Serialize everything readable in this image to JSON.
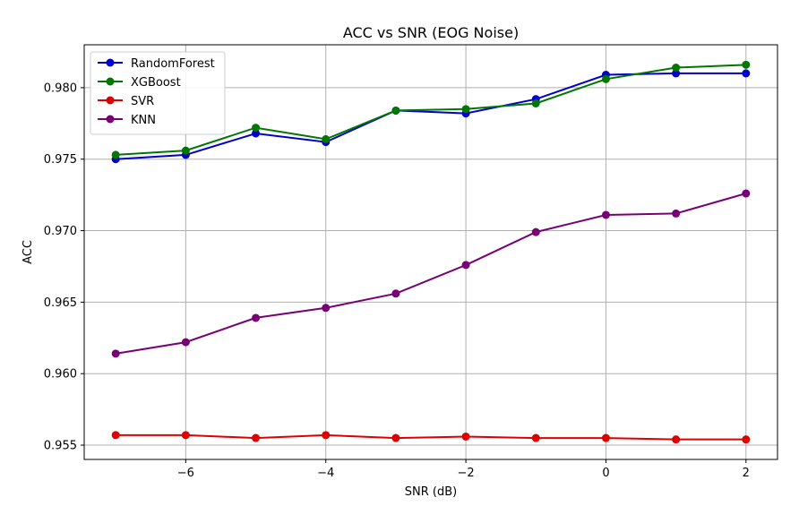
{
  "chart_data": {
    "type": "line",
    "title": "ACC vs SNR (EOG Noise)",
    "xlabel": "SNR (dB)",
    "ylabel": "ACC",
    "x": [
      -7,
      -6,
      -5,
      -4,
      -3,
      -2,
      -1,
      0,
      1,
      2
    ],
    "xlim": [
      -7.45,
      2.45
    ],
    "ylim": [
      0.954,
      0.983
    ],
    "xticks": [
      -6,
      -4,
      -2,
      0,
      2
    ],
    "xtick_labels": [
      "−6",
      "−4",
      "−2",
      "0",
      "2"
    ],
    "yticks": [
      0.955,
      0.96,
      0.965,
      0.97,
      0.975,
      0.98
    ],
    "ytick_labels": [
      "0.955",
      "0.960",
      "0.965",
      "0.970",
      "0.975",
      "0.980"
    ],
    "grid": true,
    "legend_position": "upper-left",
    "series": [
      {
        "name": "RandomForest",
        "color": "#0000cc",
        "values": [
          0.975,
          0.9753,
          0.9768,
          0.9762,
          0.9784,
          0.9782,
          0.9792,
          0.9809,
          0.981,
          0.981
        ]
      },
      {
        "name": "XGBoost",
        "color": "#007700",
        "values": [
          0.9753,
          0.9756,
          0.9772,
          0.9764,
          0.9784,
          0.9785,
          0.9789,
          0.9806,
          0.9814,
          0.9816
        ]
      },
      {
        "name": "SVR",
        "color": "#dd0000",
        "values": [
          0.9557,
          0.9557,
          0.9555,
          0.9557,
          0.9555,
          0.9556,
          0.9555,
          0.9555,
          0.9554,
          0.9554
        ]
      },
      {
        "name": "KNN",
        "color": "#770077",
        "values": [
          0.9614,
          0.9622,
          0.9639,
          0.9646,
          0.9656,
          0.9676,
          0.9699,
          0.9711,
          0.9712,
          0.9726
        ]
      }
    ]
  }
}
